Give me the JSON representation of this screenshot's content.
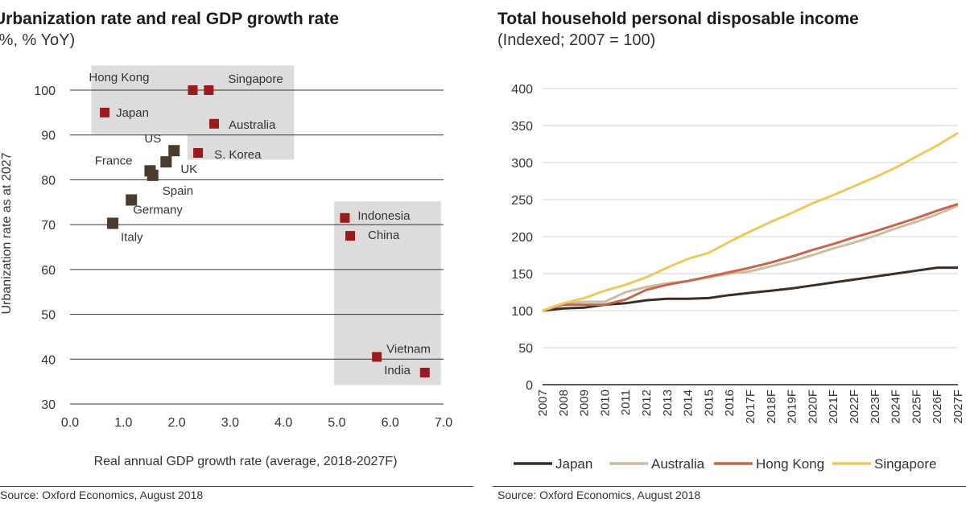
{
  "source_left": "Source: Oxford Economics, August 2018",
  "source_right": "Source: Oxford Economics, August 2018",
  "chart_data": [
    {
      "type": "scatter",
      "title": "Urbanization rate and real GDP growth rate",
      "subtitle": "(%, % YoY)",
      "xlabel": "Real annual GDP growth rate (average, 2018-2027F)",
      "ylabel": "Urbanization rate as at 2027",
      "xlim": [
        0,
        7
      ],
      "ylim": [
        30,
        100
      ],
      "x_ticks": [
        "0.0",
        "1.0",
        "2.0",
        "3.0",
        "4.0",
        "5.0",
        "6.0",
        "7.0"
      ],
      "y_ticks": [
        "30",
        "40",
        "50",
        "60",
        "70",
        "80",
        "90",
        "100"
      ],
      "grid": "horizontal",
      "colors": {
        "developed": "#4a3b2c",
        "asean": "#9c1a1a",
        "box": "#dcdcdc"
      },
      "points": [
        {
          "label": "Hong Kong",
          "x": 2.3,
          "y": 100,
          "group": "asean"
        },
        {
          "label": "Singapore",
          "x": 2.6,
          "y": 100,
          "group": "asean"
        },
        {
          "label": "Japan",
          "x": 0.65,
          "y": 95,
          "group": "asean"
        },
        {
          "label": "Australia",
          "x": 2.7,
          "y": 92.5,
          "group": "asean"
        },
        {
          "label": "S. Korea",
          "x": 2.4,
          "y": 86,
          "group": "asean"
        },
        {
          "label": "US",
          "x": 1.95,
          "y": 86.5,
          "group": "developed"
        },
        {
          "label": "UK",
          "x": 1.8,
          "y": 84,
          "group": "developed"
        },
        {
          "label": "France",
          "x": 1.5,
          "y": 82,
          "group": "developed"
        },
        {
          "label": "Spain",
          "x": 1.55,
          "y": 81,
          "group": "developed"
        },
        {
          "label": "Germany",
          "x": 1.15,
          "y": 75.5,
          "group": "developed"
        },
        {
          "label": "Italy",
          "x": 0.8,
          "y": 70.3,
          "group": "developed"
        },
        {
          "label": "Indonesia",
          "x": 5.15,
          "y": 71.5,
          "group": "asean"
        },
        {
          "label": "China",
          "x": 5.25,
          "y": 67.5,
          "group": "asean"
        },
        {
          "label": "Vietnam",
          "x": 5.75,
          "y": 40.5,
          "group": "asean"
        },
        {
          "label": "India",
          "x": 6.65,
          "y": 37,
          "group": "asean"
        }
      ]
    },
    {
      "type": "line",
      "title": "Total household personal disposable income",
      "subtitle": "(Indexed; 2007 = 100)",
      "ylim": [
        0,
        400
      ],
      "y_ticks": [
        "0",
        "50",
        "100",
        "150",
        "200",
        "250",
        "300",
        "350",
        "400"
      ],
      "grid": "horizontal",
      "legend_position": "bottom",
      "categories": [
        "2007",
        "2008",
        "2009",
        "2010",
        "2011",
        "2012",
        "2013",
        "2014",
        "2015",
        "2016",
        "2017F",
        "2018F",
        "2019F",
        "2020F",
        "2021F",
        "2022F",
        "2023F",
        "2024F",
        "2025F",
        "2026F",
        "2027F"
      ],
      "series": [
        {
          "name": "Japan",
          "color": "#3e2d22",
          "values": [
            100,
            103,
            104,
            108,
            110,
            114,
            116,
            116,
            117,
            121,
            124,
            127,
            130,
            134,
            138,
            142,
            146,
            150,
            154,
            158,
            158
          ]
        },
        {
          "name": "Australia",
          "color": "#cdbca2",
          "values": [
            100,
            110,
            112,
            112,
            125,
            132,
            137,
            140,
            145,
            150,
            153,
            160,
            167,
            175,
            184,
            192,
            201,
            211,
            220,
            230,
            242
          ]
        },
        {
          "name": "Hong Kong",
          "color": "#c8654c",
          "values": [
            100,
            108,
            108,
            108,
            115,
            128,
            135,
            140,
            146,
            152,
            158,
            165,
            173,
            182,
            190,
            199,
            207,
            216,
            225,
            235,
            244
          ]
        },
        {
          "name": "Singapore",
          "color": "#ecc95a",
          "values": [
            100,
            110,
            117,
            127,
            135,
            145,
            158,
            170,
            178,
            193,
            207,
            220,
            232,
            245,
            256,
            268,
            280,
            293,
            308,
            323,
            340
          ]
        }
      ]
    }
  ]
}
